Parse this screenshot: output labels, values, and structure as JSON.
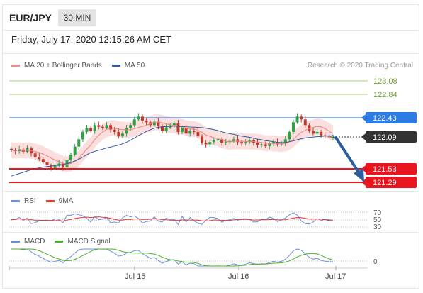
{
  "header": {
    "symbol": "EUR/JPY",
    "timeframe": "30 MIN",
    "datetime": "Friday, July 17, 2020 12:15:26 AM CET"
  },
  "legend_main": {
    "items": [
      {
        "label": "MA 20 + Bollinger Bands",
        "color": "#f08a8a"
      },
      {
        "label": "MA 50",
        "color": "#2f5c9e"
      }
    ],
    "credit": "Research © 2020 Trading Central"
  },
  "legend_rsi": {
    "items": [
      {
        "label": "RSI",
        "color": "#6a8fd8"
      },
      {
        "label": "9MA",
        "color": "#e8322c"
      }
    ]
  },
  "legend_macd": {
    "items": [
      {
        "label": "MACD",
        "color": "#6a8fd8"
      },
      {
        "label": "MACD Signal",
        "color": "#4caf28"
      }
    ]
  },
  "price_levels": [
    {
      "value": "123.08",
      "type": "resistance",
      "color": "#7cb342"
    },
    {
      "value": "122.84",
      "type": "resistance",
      "color": "#7cb342"
    },
    {
      "value": "122.43",
      "type": "pivot",
      "color": "#2d7be5"
    },
    {
      "value": "122.09",
      "type": "last",
      "color": "#333333"
    },
    {
      "value": "121.53",
      "type": "support",
      "color": "#e8141e"
    },
    {
      "value": "121.29",
      "type": "support",
      "color": "#e8141e"
    }
  ],
  "rsi_levels": [
    "70",
    "50",
    "30"
  ],
  "macd_levels": [
    "0"
  ],
  "x_labels": [
    "Jul 15",
    "Jul 16",
    "Jul 17"
  ],
  "chart_data": {
    "type": "candlestick",
    "price_axis_range": [
      121.2,
      123.2
    ],
    "closes": [
      121.86,
      121.84,
      121.87,
      121.83,
      121.89,
      121.8,
      121.74,
      121.7,
      121.64,
      121.59,
      121.54,
      121.58,
      121.62,
      121.55,
      121.68,
      121.78,
      121.92,
      122.05,
      122.18,
      122.25,
      122.2,
      122.3,
      122.27,
      122.25,
      122.3,
      122.22,
      122.18,
      122.1,
      122.15,
      122.25,
      122.3,
      122.4,
      122.45,
      122.38,
      122.35,
      122.3,
      122.36,
      122.28,
      122.2,
      122.26,
      122.3,
      122.33,
      122.18,
      122.25,
      122.15,
      122.2,
      122.18,
      122.1,
      121.98,
      121.96,
      122.0,
      122.03,
      122.05,
      121.99,
      122.0,
      122.02,
      122.05,
      122.0,
      121.98,
      122.0,
      122.03,
      121.99,
      121.95,
      121.96,
      121.93,
      121.97,
      122.0,
      121.96,
      121.98,
      122.05,
      122.18,
      122.35,
      122.45,
      122.4,
      122.3,
      122.2,
      122.15,
      122.18,
      122.12,
      122.1,
      122.09,
      122.09
    ],
    "ma50_start": 121.4,
    "ma50_end": 122.1,
    "rsi_range": [
      30,
      70
    ],
    "rsi_latest": 47,
    "macd_latest": 0.0
  },
  "forecast": {
    "from": "122.09",
    "to": "121.29",
    "color": "#2a5c9f"
  }
}
